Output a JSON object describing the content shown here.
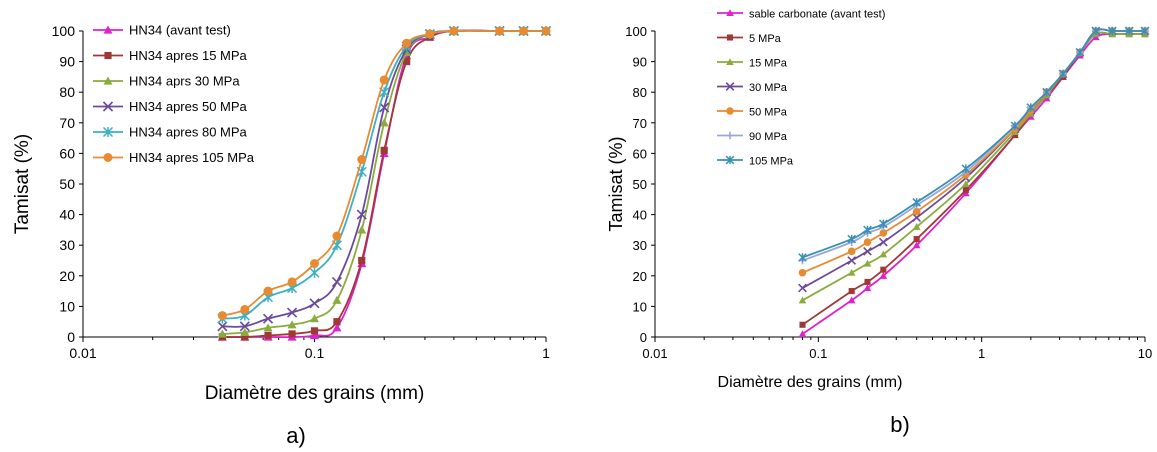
{
  "chart_data": [
    {
      "panel_label": "a)",
      "type": "line",
      "xscale": "log",
      "xlim": [
        0.01,
        1
      ],
      "ylim": [
        0,
        100
      ],
      "xlabel": "Diamètre des grains (mm)",
      "ylabel": "Tamisat (%)",
      "xticks": [
        "0.01",
        "0.1",
        "1"
      ],
      "yticks": [
        "0",
        "10",
        "20",
        "30",
        "40",
        "50",
        "60",
        "70",
        "80",
        "90",
        "100"
      ],
      "legend_position": "top-left",
      "series": [
        {
          "name": "HN34 (avant test)",
          "color": "#e020d0",
          "marker": "triangle",
          "x": [
            0.04,
            0.05,
            0.063,
            0.08,
            0.1,
            0.125,
            0.16,
            0.2,
            0.25,
            0.315,
            0.4,
            0.63,
            0.8,
            1.0
          ],
          "y": [
            0,
            0,
            0,
            0,
            0.5,
            3,
            24,
            60,
            92,
            98,
            100,
            100,
            100,
            100
          ]
        },
        {
          "name": "HN34 apres 15 MPa",
          "color": "#a03838",
          "marker": "square",
          "x": [
            0.04,
            0.05,
            0.063,
            0.08,
            0.1,
            0.125,
            0.16,
            0.2,
            0.25,
            0.315,
            0.4,
            0.63,
            0.8,
            1.0
          ],
          "y": [
            0,
            0,
            0.5,
            1,
            2,
            5,
            25,
            61,
            90,
            98,
            100,
            100,
            100,
            100
          ]
        },
        {
          "name": "HN34 aprs 30 MPa",
          "color": "#8aac3c",
          "marker": "triangle",
          "x": [
            0.04,
            0.05,
            0.063,
            0.08,
            0.1,
            0.125,
            0.16,
            0.2,
            0.25,
            0.315,
            0.4,
            0.63,
            0.8,
            1.0
          ],
          "y": [
            1,
            1.5,
            3,
            4,
            6,
            12,
            35,
            70,
            93,
            99,
            100,
            100,
            100,
            100
          ]
        },
        {
          "name": "HN34 apres 50 MPa",
          "color": "#6a4a9a",
          "marker": "x",
          "x": [
            0.04,
            0.05,
            0.063,
            0.08,
            0.1,
            0.125,
            0.16,
            0.2,
            0.25,
            0.315,
            0.4,
            0.63,
            0.8,
            1.0
          ],
          "y": [
            3.5,
            3.5,
            6,
            8,
            11,
            18,
            40,
            75,
            94,
            99,
            100,
            100,
            100,
            100
          ]
        },
        {
          "name": "HN34 apres 80 MPa",
          "color": "#3ab0c8",
          "marker": "star",
          "x": [
            0.04,
            0.05,
            0.063,
            0.08,
            0.1,
            0.125,
            0.16,
            0.2,
            0.25,
            0.315,
            0.4,
            0.63,
            0.8,
            1.0
          ],
          "y": [
            6,
            7,
            13,
            16,
            21,
            30,
            54,
            80,
            95,
            99,
            100,
            100,
            100,
            100
          ]
        },
        {
          "name": "HN34 apres 105 MPa",
          "color": "#e88a30",
          "marker": "circle",
          "x": [
            0.04,
            0.05,
            0.063,
            0.08,
            0.1,
            0.125,
            0.16,
            0.2,
            0.25,
            0.315,
            0.4,
            0.63,
            0.8,
            1.0
          ],
          "y": [
            7,
            9,
            15,
            18,
            24,
            33,
            58,
            84,
            96,
            99,
            100,
            100,
            100,
            100
          ]
        }
      ]
    },
    {
      "panel_label": "b)",
      "type": "line",
      "xscale": "log",
      "xlim": [
        0.01,
        10
      ],
      "ylim": [
        0,
        100
      ],
      "xlabel": "Diamètre des grains (mm)",
      "ylabel": "Tamisat (%)",
      "xticks": [
        "0.01",
        "0.1",
        "1",
        "10"
      ],
      "yticks": [
        "0",
        "10",
        "20",
        "30",
        "40",
        "50",
        "60",
        "70",
        "80",
        "90",
        "100"
      ],
      "legend_position": "top-left",
      "series": [
        {
          "name": "sable carbonate (avant test)",
          "color": "#e020d0",
          "marker": "triangle",
          "x": [
            0.08,
            0.16,
            0.2,
            0.25,
            0.4,
            0.8,
            1.6,
            2.0,
            2.5,
            3.15,
            4.0,
            5.0,
            6.3,
            8.0,
            10.0
          ],
          "y": [
            1,
            12,
            16,
            20,
            30,
            47,
            66,
            72,
            78,
            85,
            92,
            98,
            99,
            99,
            99
          ]
        },
        {
          "name": "5 MPa",
          "color": "#a03838",
          "marker": "square",
          "x": [
            0.08,
            0.16,
            0.2,
            0.25,
            0.4,
            0.8,
            1.6,
            2.0,
            2.5,
            3.15,
            4.0,
            5.0,
            6.3,
            8.0,
            10.0
          ],
          "y": [
            4,
            15,
            18,
            22,
            32,
            48,
            66,
            73,
            79,
            85,
            93,
            99,
            99,
            99,
            99
          ]
        },
        {
          "name": "15 MPa",
          "color": "#8aac3c",
          "marker": "triangle",
          "x": [
            0.08,
            0.16,
            0.2,
            0.25,
            0.4,
            0.8,
            1.6,
            2.0,
            2.5,
            3.15,
            4.0,
            5.0,
            6.3,
            8.0,
            10.0
          ],
          "y": [
            12,
            21,
            24,
            27,
            36,
            50,
            67,
            73,
            79,
            86,
            93,
            99,
            99,
            99,
            99
          ]
        },
        {
          "name": "30 MPa",
          "color": "#6a4a9a",
          "marker": "x",
          "x": [
            0.08,
            0.16,
            0.2,
            0.25,
            0.4,
            0.8,
            1.6,
            2.0,
            2.5,
            3.15,
            4.0,
            5.0,
            6.3,
            8.0,
            10.0
          ],
          "y": [
            16,
            25,
            28,
            31,
            39,
            52,
            68,
            74,
            80,
            86,
            93,
            100,
            100,
            100,
            100
          ]
        },
        {
          "name": "50 MPa",
          "color": "#e88a30",
          "marker": "circle",
          "x": [
            0.08,
            0.16,
            0.2,
            0.25,
            0.4,
            0.8,
            1.6,
            2.0,
            2.5,
            3.15,
            4.0,
            5.0,
            6.3,
            8.0,
            10.0
          ],
          "y": [
            21,
            28,
            31,
            34,
            41,
            53,
            68,
            74,
            80,
            86,
            93,
            100,
            100,
            100,
            100
          ]
        },
        {
          "name": "90 MPa",
          "color": "#9aa8d8",
          "marker": "plus",
          "x": [
            0.08,
            0.16,
            0.2,
            0.25,
            0.4,
            0.8,
            1.6,
            2.0,
            2.5,
            3.15,
            4.0,
            5.0,
            6.3,
            8.0,
            10.0
          ],
          "y": [
            25,
            31,
            34,
            36,
            43,
            54,
            69,
            75,
            80,
            86,
            93,
            100,
            100,
            100,
            100
          ]
        },
        {
          "name": "105 MPa",
          "color": "#3a8fb8",
          "marker": "star",
          "x": [
            0.08,
            0.16,
            0.2,
            0.25,
            0.4,
            0.8,
            1.6,
            2.0,
            2.5,
            3.15,
            4.0,
            5.0,
            6.3,
            8.0,
            10.0
          ],
          "y": [
            26,
            32,
            35,
            37,
            44,
            55,
            69,
            75,
            80,
            86,
            93,
            100,
            100,
            100,
            100
          ]
        }
      ]
    }
  ]
}
